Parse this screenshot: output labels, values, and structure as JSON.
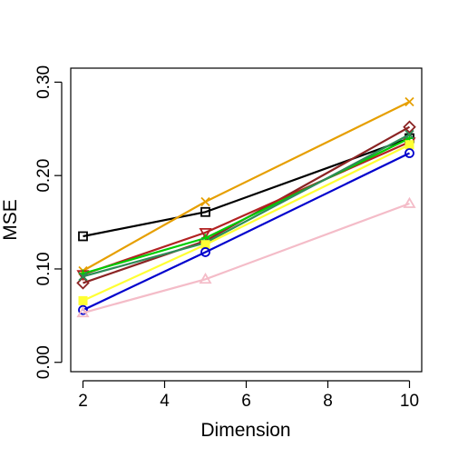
{
  "chart_data": {
    "type": "line",
    "title": "",
    "xlabel": "Dimension",
    "ylabel": "MSE",
    "x": [
      2,
      5,
      10
    ],
    "xlim": [
      1.7,
      10.3
    ],
    "ylim": [
      -0.01,
      0.315
    ],
    "xticks": [
      2,
      4,
      6,
      8,
      10
    ],
    "xtick_labels": [
      "2",
      "4",
      "6",
      "8",
      "10"
    ],
    "yticks": [
      0.0,
      0.1,
      0.2,
      0.3
    ],
    "ytick_labels": [
      "0.00",
      "0.10",
      "0.20",
      "0.30"
    ],
    "grid": false,
    "legend": "none",
    "series": [
      {
        "color": "#000000",
        "marker": "square",
        "values": [
          0.135,
          0.161,
          0.24
        ]
      },
      {
        "color": "#E69F00",
        "marker": "cross",
        "values": [
          0.098,
          0.172,
          0.279
        ]
      },
      {
        "color": "#8B2323",
        "marker": "diamond",
        "values": [
          0.085,
          0.13,
          0.252
        ]
      },
      {
        "color": "#B22222",
        "marker": "triangle-down",
        "values": [
          0.094,
          0.139,
          0.236
        ]
      },
      {
        "color": "#00CC00",
        "marker": "plus",
        "values": [
          0.095,
          0.133,
          0.24
        ]
      },
      {
        "color": "#2E8B57",
        "marker": "cross",
        "values": [
          0.092,
          0.128,
          0.244
        ]
      },
      {
        "color": "#FFFF33",
        "marker": "filled-square",
        "values": [
          0.066,
          0.126,
          0.233
        ]
      },
      {
        "color": "#0000CD",
        "marker": "circle",
        "values": [
          0.056,
          0.118,
          0.224
        ]
      },
      {
        "color": "#F4BCC8",
        "marker": "triangle",
        "values": [
          0.053,
          0.089,
          0.17
        ]
      }
    ]
  }
}
